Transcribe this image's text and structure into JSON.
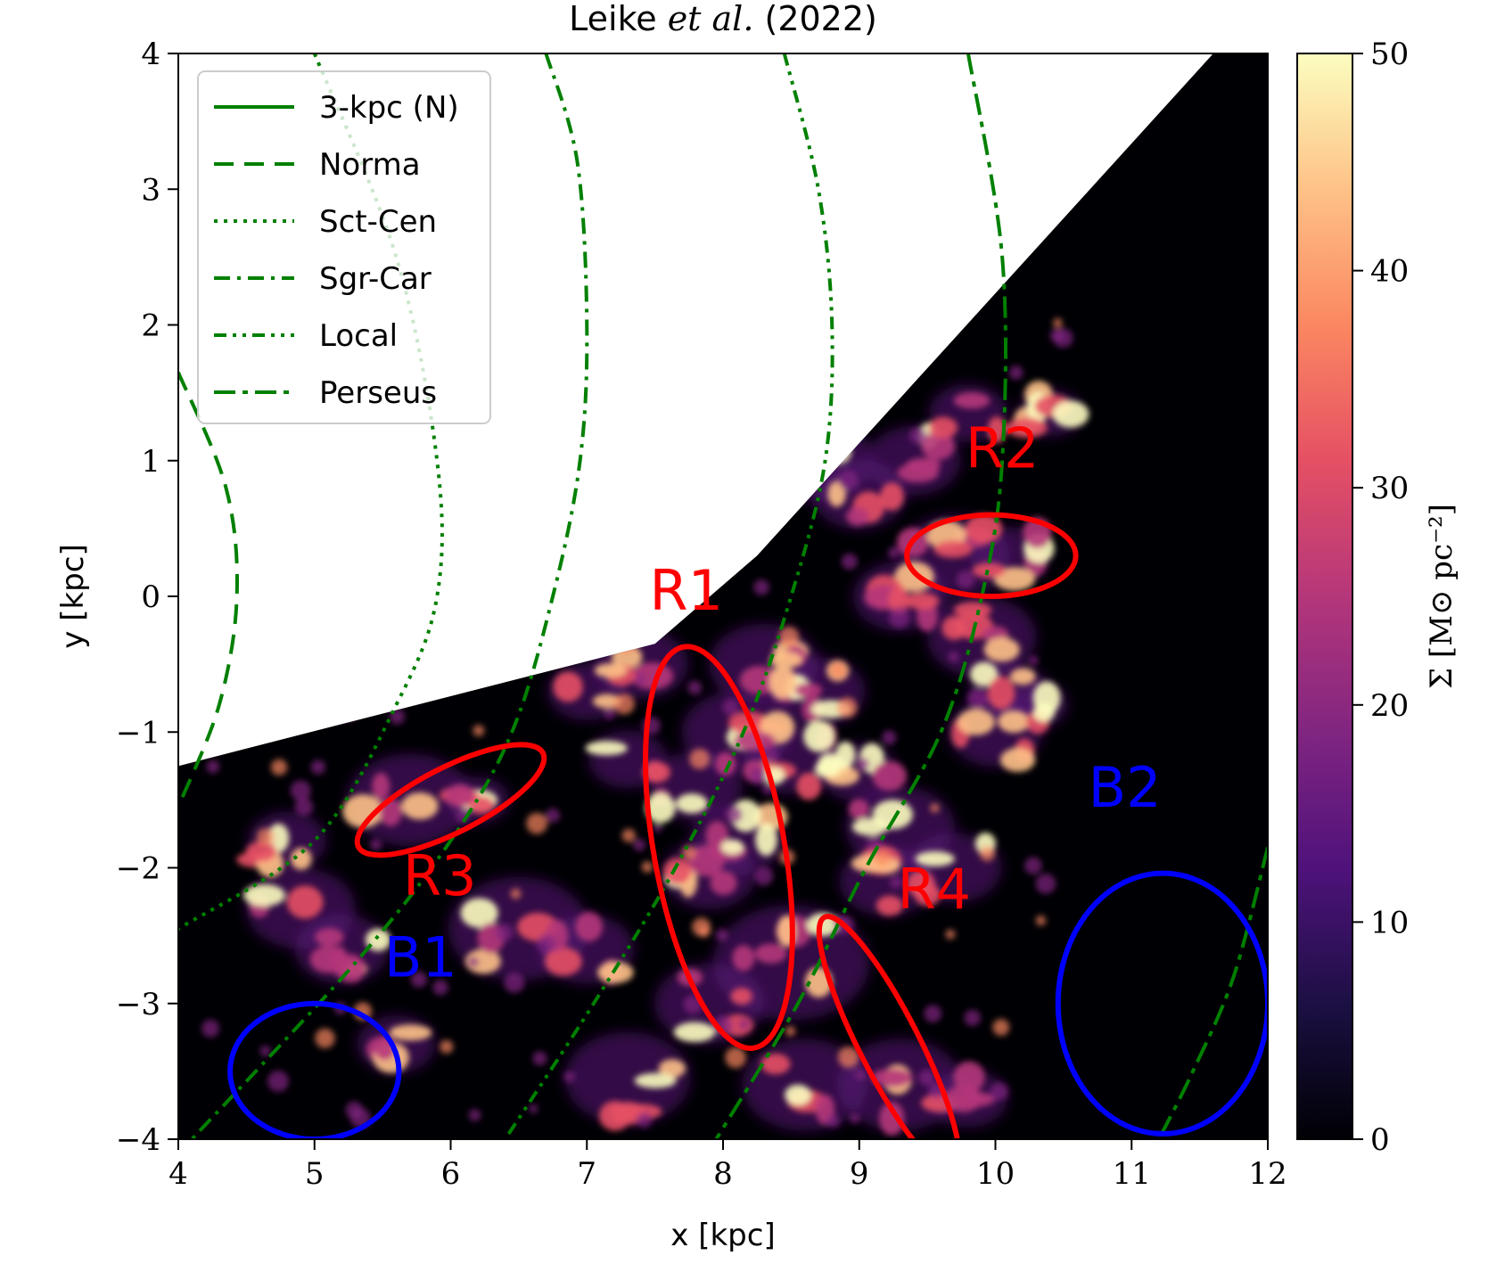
{
  "chart_data": {
    "type": "heatmap",
    "title": {
      "prefix": "Leike ",
      "italic": "et al.",
      "suffix": " (2022)"
    },
    "xlabel": "x [kpc]",
    "ylabel": "y [kpc]",
    "xlim": [
      4,
      12
    ],
    "ylim": [
      -4,
      4
    ],
    "xticks": [
      {
        "value": 4,
        "label": "4"
      },
      {
        "value": 5,
        "label": "5"
      },
      {
        "value": 6,
        "label": "6"
      },
      {
        "value": 7,
        "label": "7"
      },
      {
        "value": 8,
        "label": "8"
      },
      {
        "value": 9,
        "label": "9"
      },
      {
        "value": 10,
        "label": "10"
      },
      {
        "value": 11,
        "label": "11"
      },
      {
        "value": 12,
        "label": "12"
      }
    ],
    "yticks": [
      {
        "value": 4,
        "label": "4"
      },
      {
        "value": 3,
        "label": "3"
      },
      {
        "value": 2,
        "label": "2"
      },
      {
        "value": 1,
        "label": "1"
      },
      {
        "value": 0,
        "label": "0"
      },
      {
        "value": -1,
        "label": "−1"
      },
      {
        "value": -2,
        "label": "−2"
      },
      {
        "value": -3,
        "label": "−3"
      },
      {
        "value": -4,
        "label": "−4"
      }
    ],
    "colorbar": {
      "label": "Σ [M⊙ pc⁻²]",
      "min": 0,
      "max": 50,
      "ticks": [
        {
          "value": 0,
          "label": "0"
        },
        {
          "value": 10,
          "label": "10"
        },
        {
          "value": 20,
          "label": "20"
        },
        {
          "value": 30,
          "label": "30"
        },
        {
          "value": 40,
          "label": "40"
        },
        {
          "value": 50,
          "label": "50"
        }
      ],
      "colormap": [
        "#000004",
        "#1c1044",
        "#4f127b",
        "#812581",
        "#b5367a",
        "#e55064",
        "#fb8761",
        "#fec287",
        "#fcfdbf"
      ]
    },
    "coverage_boundary": [
      [
        4,
        -1.25
      ],
      [
        7.5,
        -0.35
      ],
      [
        8.25,
        0.3
      ],
      [
        11.6,
        4
      ],
      [
        12,
        4
      ]
    ],
    "spiral_arms": [
      {
        "name": "3-kpc (N)",
        "style": "solid",
        "points": []
      },
      {
        "name": "Norma",
        "style": "dashed",
        "points": [
          [
            4.0,
            1.65
          ],
          [
            4.35,
            0.8
          ],
          [
            4.43,
            0
          ],
          [
            4.3,
            -0.8
          ],
          [
            4.0,
            -1.55
          ]
        ]
      },
      {
        "name": "Sct-Cen",
        "style": "dotted",
        "points": [
          [
            5.0,
            4
          ],
          [
            5.6,
            2.5
          ],
          [
            5.9,
            1
          ],
          [
            5.9,
            0
          ],
          [
            5.6,
            -0.8
          ],
          [
            5.0,
            -1.8
          ],
          [
            4.0,
            -2.45
          ]
        ]
      },
      {
        "name": "Sgr-Car",
        "style": "dashdot",
        "points": [
          [
            6.7,
            4
          ],
          [
            6.93,
            3.2
          ],
          [
            7.0,
            2
          ],
          [
            6.95,
            1
          ],
          [
            6.75,
            0
          ],
          [
            6.45,
            -1
          ],
          [
            6.0,
            -1.8
          ],
          [
            5.3,
            -2.7
          ],
          [
            4.1,
            -4
          ]
        ]
      },
      {
        "name": "Local",
        "style": "dashdotdot",
        "points": [
          [
            8.45,
            4
          ],
          [
            8.7,
            3
          ],
          [
            8.8,
            2
          ],
          [
            8.75,
            1
          ],
          [
            8.5,
            0
          ],
          [
            8.15,
            -1
          ],
          [
            7.65,
            -2
          ],
          [
            7.05,
            -3
          ],
          [
            6.4,
            -4
          ]
        ]
      },
      {
        "name": "Perseus",
        "style": "longdash",
        "points": [
          [
            9.8,
            4
          ],
          [
            10.05,
            2.5
          ],
          [
            10.05,
            1
          ],
          [
            9.9,
            0
          ],
          [
            9.6,
            -1
          ],
          [
            9.05,
            -2
          ],
          [
            8.55,
            -3
          ],
          [
            7.95,
            -4
          ]
        ]
      },
      {
        "name": "Perseus (far)",
        "style": "longdash",
        "points": [
          [
            12,
            -1.85
          ],
          [
            11.75,
            -2.8
          ],
          [
            11.45,
            -3.5
          ],
          [
            11.2,
            -4
          ]
        ],
        "in_legend": false
      }
    ],
    "regions": [
      {
        "label": "R1",
        "color": "#ff0000",
        "center": [
          7.97,
          -1.85
        ],
        "semi_axes": [
          0.48,
          1.5
        ],
        "angle_deg": 10,
        "label_at": [
          7.73,
          -0.1
        ]
      },
      {
        "label": "R2",
        "color": "#ff0000",
        "center": [
          9.97,
          0.3
        ],
        "semi_axes": [
          0.62,
          0.3
        ],
        "angle_deg": 0,
        "label_at": [
          10.05,
          0.95
        ]
      },
      {
        "label": "R3",
        "color": "#ff0000",
        "center": [
          6.0,
          -1.5
        ],
        "semi_axes": [
          0.76,
          0.24
        ],
        "angle_deg": 27,
        "label_at": [
          5.92,
          -2.2
        ]
      },
      {
        "label": "R4",
        "color": "#ff0000",
        "center": [
          9.22,
          -3.3
        ],
        "semi_axes": [
          0.22,
          1.05
        ],
        "angle_deg": 27,
        "label_at": [
          9.55,
          -2.3
        ]
      },
      {
        "label": "B1",
        "color": "#0000ff",
        "center": [
          5.0,
          -3.5
        ],
        "semi_axes": [
          0.62,
          0.5
        ],
        "angle_deg": 0,
        "label_at": [
          5.78,
          -2.8
        ]
      },
      {
        "label": "B2",
        "color": "#0000ff",
        "center": [
          11.23,
          -3.0
        ],
        "semi_axes": [
          0.77,
          0.96
        ],
        "angle_deg": 0,
        "label_at": [
          10.95,
          -1.55
        ]
      }
    ],
    "legend": {
      "placement": "upper-left"
    }
  }
}
